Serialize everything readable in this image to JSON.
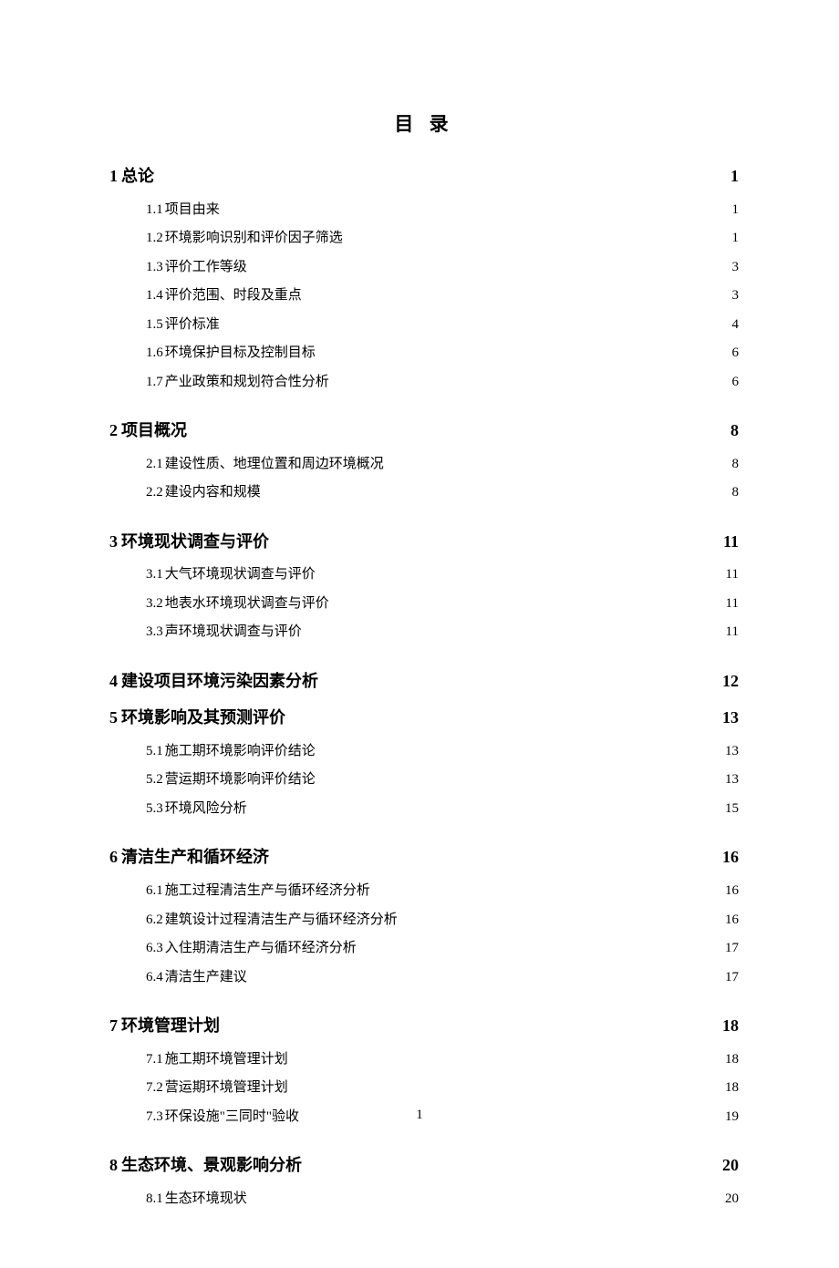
{
  "title": "目 录",
  "page_number": "1",
  "colors": {
    "text": "#000000",
    "background": "#ffffff"
  },
  "typography": {
    "title_fontsize": 21,
    "level1_fontsize": 18,
    "level2_fontsize": 15,
    "footer_fontsize": 15,
    "font_family": "SimSun"
  },
  "toc": [
    {
      "num": "1",
      "text": "总论",
      "page": "1",
      "level": 1,
      "children": [
        {
          "num": "1.1",
          "text": " 项目由来",
          "page": "1"
        },
        {
          "num": "1.2",
          "text": "环境影响识别和评价因子筛选",
          "page": "1"
        },
        {
          "num": "1.3",
          "text": " 评价工作等级",
          "page": "3"
        },
        {
          "num": "1.4",
          "text": " 评价范围、时段及重点",
          "page": "3"
        },
        {
          "num": "1.5",
          "text": " 评价标准",
          "page": "4"
        },
        {
          "num": "1.6",
          "text": " 环境保护目标及控制目标",
          "page": "6"
        },
        {
          "num": "1.7",
          "text": " 产业政策和规划符合性分析",
          "page": "6"
        }
      ]
    },
    {
      "num": "2",
      "text": "项目概况",
      "page": "8",
      "level": 1,
      "children": [
        {
          "num": "2.1",
          "text": " 建设性质、地理位置和周边环境概况",
          "page": "8"
        },
        {
          "num": "2.2",
          "text": " 建设内容和规模",
          "page": "8"
        }
      ]
    },
    {
      "num": "3",
      "text": "环境现状调查与评价",
      "page": "11",
      "level": 1,
      "children": [
        {
          "num": "3.1",
          "text": " 大气环境现状调查与评价",
          "page": "11"
        },
        {
          "num": "3.2",
          "text": " 地表水环境现状调查与评价",
          "page": "11"
        },
        {
          "num": "3.3",
          "text": " 声环境现状调查与评价",
          "page": "11"
        }
      ]
    },
    {
      "num": "4",
      "text": "建设项目环境污染因素分析",
      "page": "12",
      "level": 1,
      "children": []
    },
    {
      "num": "5",
      "text": "环境影响及其预测评价",
      "page": "13",
      "level": 1,
      "children": [
        {
          "num": "5.1",
          "text": "施工期环境影响评价结论",
          "page": "13"
        },
        {
          "num": "5.2",
          "text": " 营运期环境影响评价结论",
          "page": "13"
        },
        {
          "num": "5.3",
          "text": " 环境风险分析",
          "page": "15"
        }
      ]
    },
    {
      "num": "6",
      "text": "清洁生产和循环经济",
      "page": "16",
      "level": 1,
      "children": [
        {
          "num": "6.1",
          "text": " 施工过程清洁生产与循环经济分析",
          "page": "16"
        },
        {
          "num": "6.2",
          "text": " 建筑设计过程清洁生产与循环经济分析",
          "page": "16"
        },
        {
          "num": "6.3",
          "text": " 入住期清洁生产与循环经济分析",
          "page": "17"
        },
        {
          "num": "6.4",
          "text": " 清洁生产建议",
          "page": "17"
        }
      ]
    },
    {
      "num": "7",
      "text": "环境管理计划",
      "page": "18",
      "level": 1,
      "children": [
        {
          "num": "7.1",
          "text": " 施工期环境管理计划",
          "page": "18"
        },
        {
          "num": "7.2",
          "text": " 营运期环境管理计划",
          "page": "18"
        },
        {
          "num": "7.3",
          "text": " 环保设施\"三同时\"验收",
          "page": "19"
        }
      ]
    },
    {
      "num": "8",
      "text": "生态环境、景观影响分析",
      "page": "20",
      "level": 1,
      "children": [
        {
          "num": "8.1",
          "text": " 生态环境现状",
          "page": "20"
        }
      ]
    }
  ]
}
